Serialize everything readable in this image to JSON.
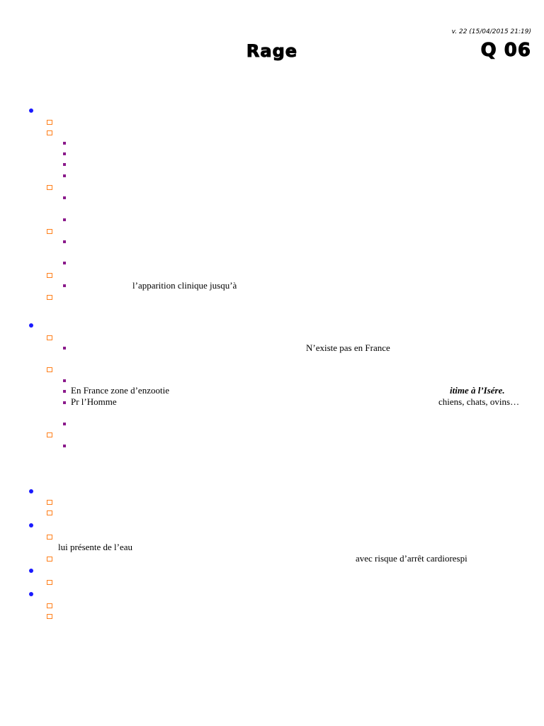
{
  "header": {
    "version": "v. 22 (15/04/2015 21:19)",
    "title": "Rage",
    "code": "Q 06"
  },
  "texts": {
    "t1": "l’apparition clinique jusqu’à",
    "t2": "N’existe pas en France",
    "t3": "En France zone d’enzootie",
    "t4": "itime à l’Isére.",
    "t5": "Pr l’Homme",
    "t6": "chiens, chats, ovins…",
    "t7": "lui présente de l’eau",
    "t8": "avec risque d’arrêt cardiorespi"
  },
  "colors": {
    "level1_bullet": "#1a1aff",
    "level2_bullet": "#ff7f1a",
    "level3_bullet": "#8b1a8b"
  }
}
